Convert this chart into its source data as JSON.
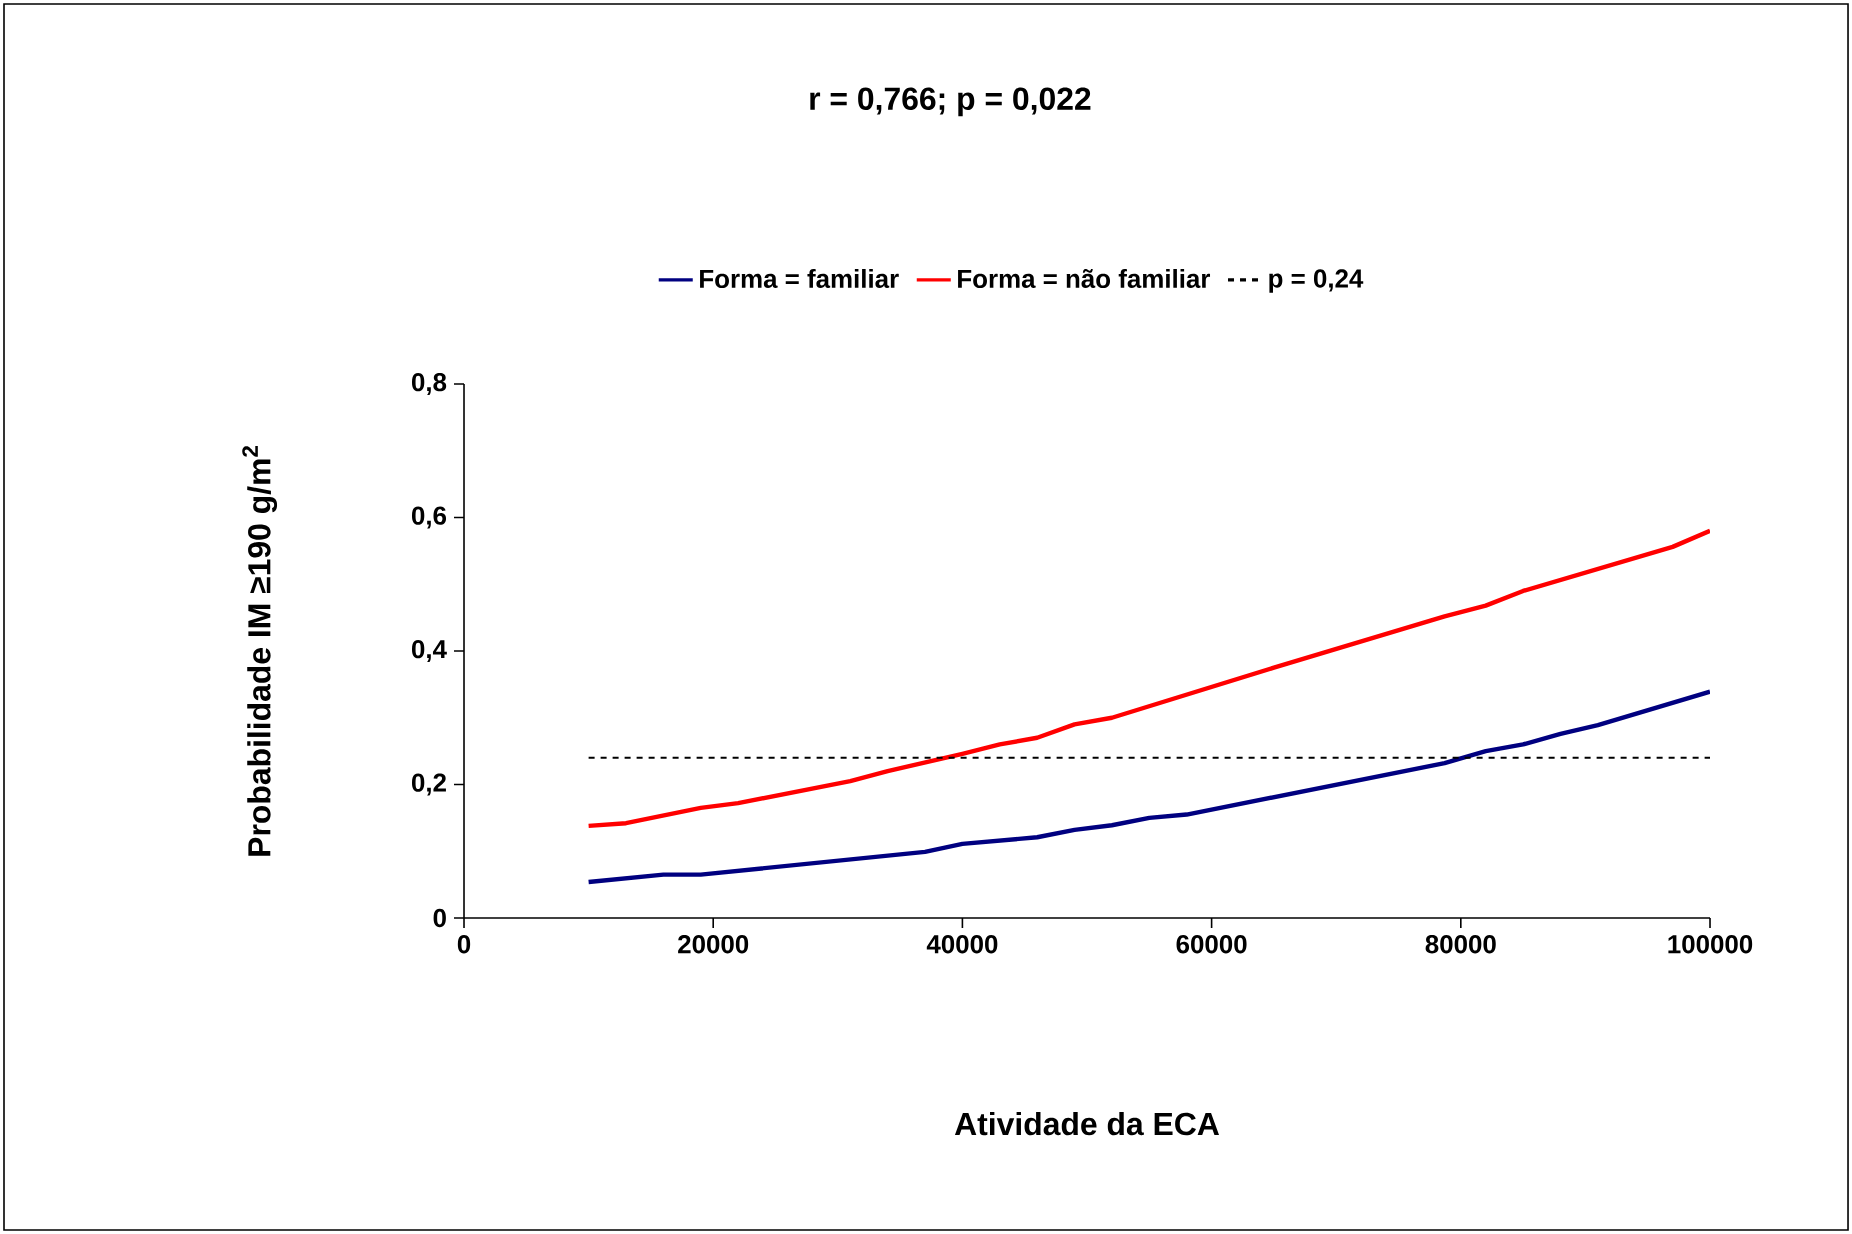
{
  "chart_data": {
    "type": "line",
    "title": "r = 0,766; p = 0,022",
    "xlabel": "Atividade da ECA",
    "ylabel": "Probabilidade IM ≥190 g/m$^{2}$",
    "xlim": [
      0,
      100000
    ],
    "xticks": [
      0,
      20000,
      40000,
      60000,
      80000,
      100000
    ],
    "ylim": [
      0,
      0.8
    ],
    "yticks": [
      0,
      {
        "value": 0.2,
        "label": "0,2"
      },
      {
        "value": 0.4,
        "label": "0,4"
      },
      {
        "value": 0.6,
        "label": "0,6"
      },
      {
        "value": 0.8,
        "label": "0,8"
      }
    ],
    "grid": false,
    "legend": "top",
    "marker": "none",
    "series": [
      {
        "name": "Forma = familiar",
        "color": "#000080",
        "line_style": "solid",
        "x": [
          10000,
          16000,
          19000,
          37000,
          40000,
          46000,
          49000,
          52000,
          55000,
          58000,
          78700,
          82000,
          85000,
          88000,
          91000,
          100000
        ],
        "values": [
          0.054,
          0.065,
          0.065,
          0.099,
          0.111,
          0.121,
          0.132,
          0.139,
          0.15,
          0.155,
          0.232,
          0.25,
          0.26,
          0.276,
          0.289,
          0.339
        ]
      },
      {
        "name": "Forma = não familiar",
        "color": "#ff0000",
        "line_style": "solid",
        "x": [
          10000,
          13000,
          19000,
          22000,
          31000,
          34000,
          40000,
          43000,
          46000,
          49000,
          52000,
          65000,
          78700,
          82000,
          85000,
          97000,
          100000
        ],
        "values": [
          0.138,
          0.142,
          0.165,
          0.172,
          0.205,
          0.22,
          0.246,
          0.26,
          0.27,
          0.29,
          0.3,
          0.375,
          0.452,
          0.468,
          0.49,
          0.556,
          0.58
        ]
      },
      {
        "name": "p = 0,24",
        "color": "#000000",
        "line_style": "dotted",
        "x": [
          10000,
          100000
        ],
        "values": [
          0.24,
          0.24
        ]
      }
    ]
  }
}
